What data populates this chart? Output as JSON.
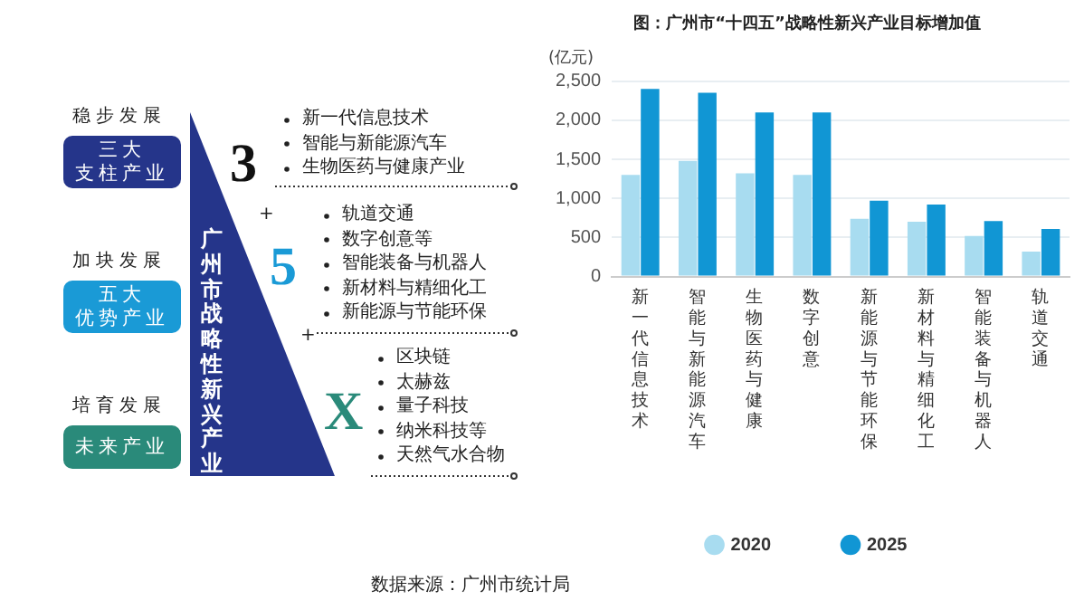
{
  "chart_data": [
    {
      "type": "other",
      "annotations": [
        "稳步发展",
        "三大支柱产业",
        "加块发展",
        "五大优势产业",
        "培育发展",
        "未来产业",
        "广州市战略性新兴产业",
        "3",
        "5",
        "X",
        "+",
        "+",
        "新一代信息技术",
        "智能与新能源汽车",
        "生物医药与健康产业",
        "轨道交通",
        "数字创意等",
        "智能装备与机器人",
        "新材料与精细化工",
        "新能源与节能环保",
        "区块链",
        "太赫兹",
        "量子科技",
        "纳米科技等",
        "天然气水合物"
      ]
    },
    {
      "type": "bar",
      "title": "图：广州市“十四五”战略性新兴产业目标增加值",
      "ylabel": "(亿元)",
      "categories": [
        "新一代信息技术",
        "智能与新能源汽车",
        "生物医药与健康",
        "数字创意",
        "新能源与节能环保",
        "新材料与精细化工",
        "智能装备与机器人",
        "轨道交通"
      ],
      "series": [
        {
          "name": "2020",
          "color": "#a8dcf0",
          "values": [
            1300,
            1480,
            1320,
            1300,
            740,
            700,
            520,
            320
          ]
        },
        {
          "name": "2025",
          "color": "#1196d4",
          "values": [
            2400,
            2350,
            2100,
            2100,
            970,
            920,
            710,
            610
          ]
        }
      ],
      "ylim": [
        0,
        2500
      ],
      "yticks": [
        0,
        {
          "value": 500,
          "label": "500"
        },
        {
          "value": 1000,
          "label": "1,000"
        },
        {
          "value": 1500,
          "label": "1,500"
        },
        {
          "value": 2000,
          "label": "2,000"
        },
        {
          "value": 2500,
          "label": "2,500"
        }
      ],
      "grid": "y",
      "legend": "bottom",
      "annotations": [
        "数据来源：广州市统计局"
      ]
    }
  ]
}
